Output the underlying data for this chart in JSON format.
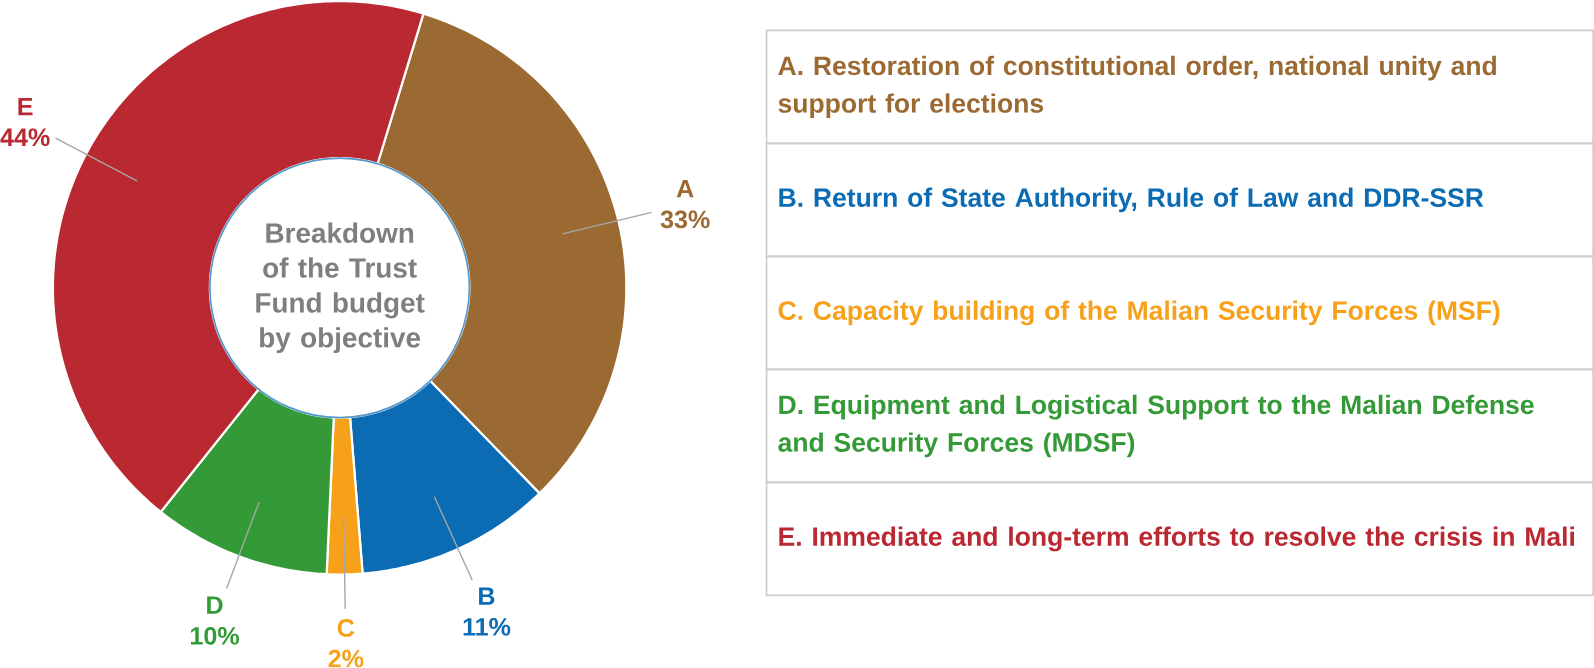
{
  "chart_data": {
    "type": "donut",
    "title": "Breakdown of the Trust Fund budget by objective",
    "categories": [
      "A",
      "B",
      "C",
      "D",
      "E"
    ],
    "values": [
      33,
      11,
      2,
      10,
      44
    ],
    "value_labels": [
      "33%",
      "11%",
      "2%",
      "10%",
      "44%"
    ],
    "colors": [
      "#9b6a33",
      "#0b6bb3",
      "#f7a11a",
      "#349a37",
      "#ba2831"
    ],
    "annotations": [
      "A. Restoration of constitutional order, national unity and support for elections",
      "B. Return of State Authority, Rule of Law and DDR-SSR",
      "C. Capacity building of the Malian Security Forces (MSF)",
      "D. Equipment and Logistical Support to the Malian Defense and Security Forces (MDSF)",
      "E. Immediate and long-term efforts to resolve the crisis in Mali"
    ]
  }
}
